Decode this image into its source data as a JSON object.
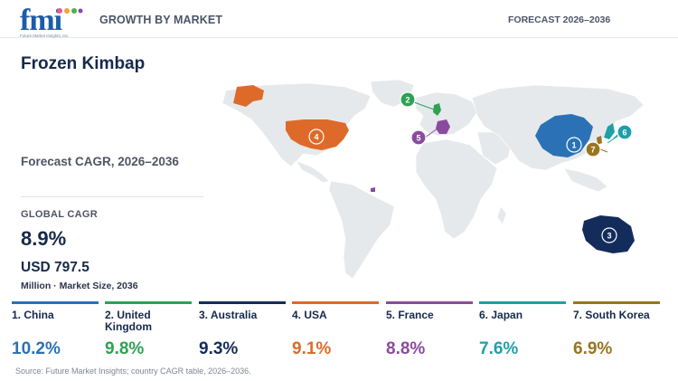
{
  "header": {
    "logo_text": "fmi",
    "logo_subtext": "Future Market Insights, Inc.",
    "section_label": "GROWTH BY MARKET",
    "forecast_label": "FORECAST 2026–2036"
  },
  "summary": {
    "title": "Frozen Kimbap",
    "cagr_heading": "Forecast CAGR, 2026–2036",
    "global_label": "GLOBAL CAGR",
    "global_value": "8.9%",
    "market_value": "USD 797.5",
    "market_note": "Million · Market Size, 2036"
  },
  "map": {
    "base_color": "#e6e9ec",
    "markers": [
      {
        "rank": "1",
        "country": "China",
        "color": "#2a72b5"
      },
      {
        "rank": "2",
        "country": "United Kingdom",
        "color": "#2ea155"
      },
      {
        "rank": "3",
        "country": "Australia",
        "color": "#142c5c"
      },
      {
        "rank": "4",
        "country": "USA",
        "color": "#de6a2a"
      },
      {
        "rank": "5",
        "country": "France",
        "color": "#8a4b9e"
      },
      {
        "rank": "6",
        "country": "Japan",
        "color": "#1f9fa8"
      },
      {
        "rank": "7",
        "country": "South Korea",
        "color": "#9a7420"
      }
    ]
  },
  "countries": [
    {
      "label": "1. China",
      "value": "10.2%",
      "color": "#2a72b5"
    },
    {
      "label": "2. United Kingdom",
      "value": "9.8%",
      "color": "#2ea155"
    },
    {
      "label": "3. Australia",
      "value": "9.3%",
      "color": "#142c5c"
    },
    {
      "label": "4. USA",
      "value": "9.1%",
      "color": "#de6a2a"
    },
    {
      "label": "5. France",
      "value": "8.8%",
      "color": "#8a4b9e"
    },
    {
      "label": "6. Japan",
      "value": "7.6%",
      "color": "#1f9fa8"
    },
    {
      "label": "7. South Korea",
      "value": "6.9%",
      "color": "#9a7420"
    }
  ],
  "source": "Source: Future Market Insights; country CAGR table, 2026–2036."
}
